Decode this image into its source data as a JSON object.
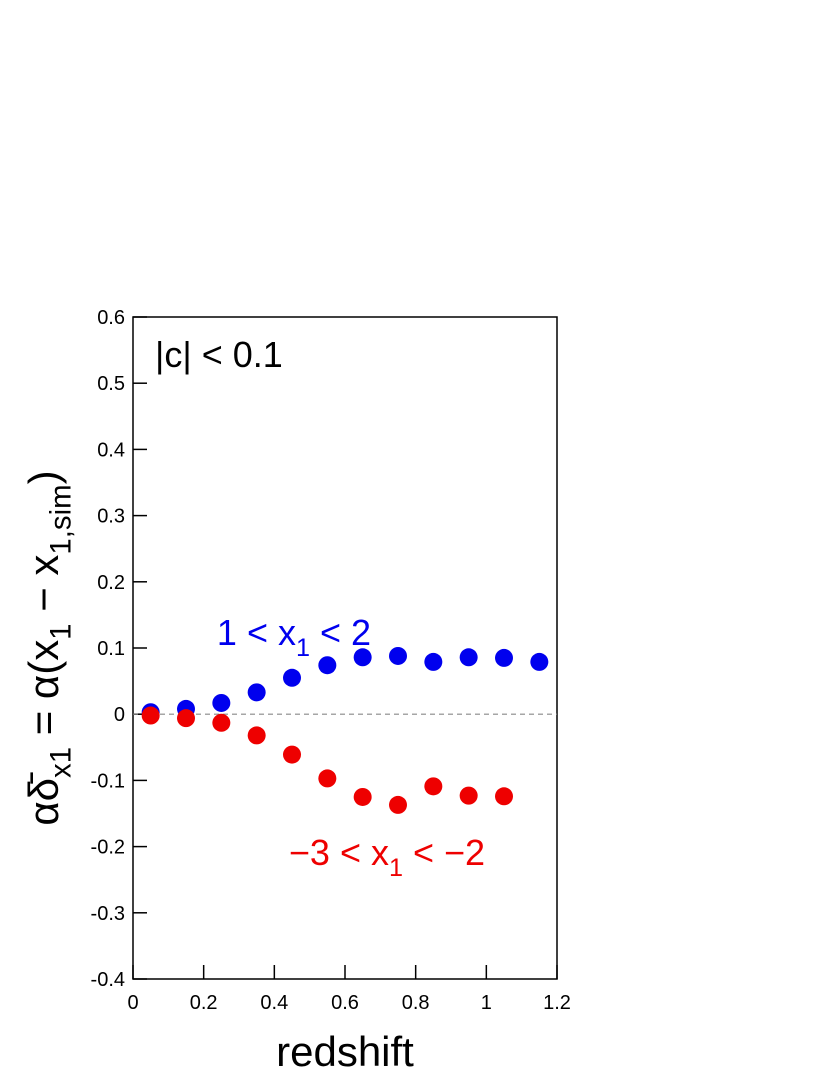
{
  "chart_data": {
    "type": "scatter",
    "xlabel": "redshift",
    "ylabel": [
      {
        "text": "αδ̄",
        "sub": false
      },
      {
        "text": "x1",
        "sub": true
      },
      {
        "text": " = α(x",
        "sub": false
      },
      {
        "text": "1",
        "sub": true
      },
      {
        "text": " − x",
        "sub": false
      },
      {
        "text": "1,sim",
        "sub": true
      },
      {
        "text": ")",
        "sub": false
      }
    ],
    "annotations": [
      {
        "parts": [
          {
            "text": "|c| < 0.1",
            "sub": false
          }
        ],
        "color": "#000000"
      },
      {
        "parts": [
          {
            "text": "1 < x",
            "sub": false
          },
          {
            "text": "1",
            "sub": true
          },
          {
            "text": " < 2",
            "sub": false
          }
        ],
        "color": "#0000ee"
      },
      {
        "parts": [
          {
            "text": "−3 < x",
            "sub": false
          },
          {
            "text": "1",
            "sub": true
          },
          {
            "text": " < −2",
            "sub": false
          }
        ],
        "color": "#ee0000"
      }
    ],
    "series": [
      {
        "color": "#0000ee",
        "x": [
          0.05,
          0.15,
          0.25,
          0.35,
          0.45,
          0.55,
          0.65,
          0.75,
          0.85,
          0.95,
          1.05,
          1.15
        ],
        "values": [
          0.003,
          0.008,
          0.017,
          0.033,
          0.055,
          0.074,
          0.086,
          0.088,
          0.079,
          0.086,
          0.085,
          0.079
        ]
      },
      {
        "color": "#ee0000",
        "x": [
          0.05,
          0.15,
          0.25,
          0.35,
          0.45,
          0.55,
          0.65,
          0.75,
          0.85,
          0.95,
          1.05
        ],
        "values": [
          -0.002,
          -0.006,
          -0.013,
          -0.032,
          -0.061,
          -0.097,
          -0.125,
          -0.137,
          -0.109,
          -0.123,
          -0.124
        ]
      }
    ],
    "xlim": [
      0,
      1.2
    ],
    "xticks": [
      0,
      0.2,
      0.4,
      0.6,
      0.8,
      1,
      1.2
    ],
    "ylim": [
      -0.4,
      0.6
    ],
    "yticks": [
      -0.4,
      -0.3,
      -0.2,
      -0.1,
      0,
      0.1,
      0.2,
      0.3,
      0.4,
      0.5,
      0.6
    ],
    "reference_line": 0
  }
}
